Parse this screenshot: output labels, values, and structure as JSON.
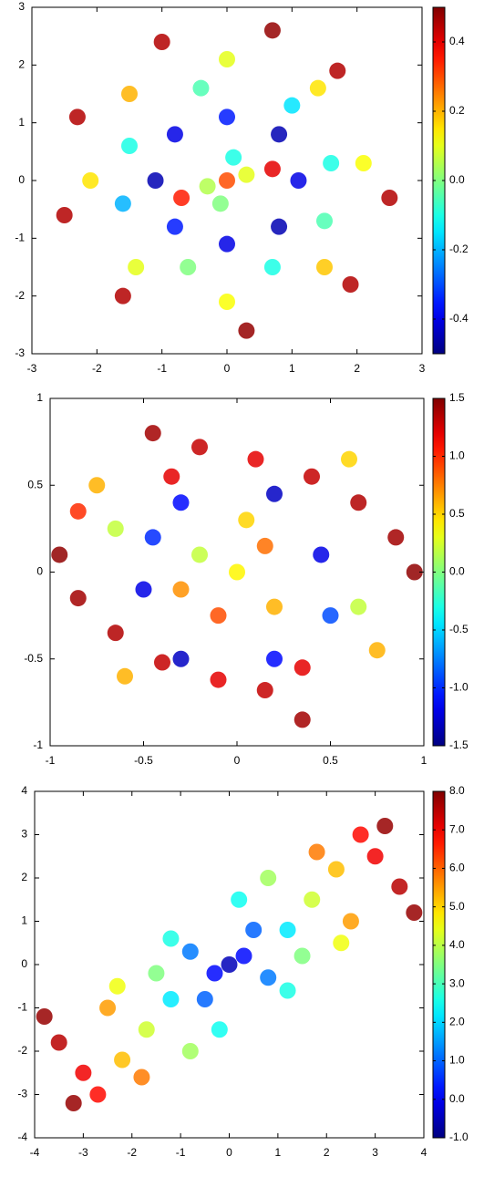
{
  "chart_data": [
    {
      "type": "scatter",
      "colormap": "jet",
      "xlim": [
        -3,
        3
      ],
      "ylim": [
        -3,
        3
      ],
      "clim": [
        -0.5,
        0.5
      ],
      "xticks": [
        -3,
        -2,
        -1,
        0,
        1,
        2,
        3
      ],
      "yticks": [
        -3,
        -2,
        -1,
        0,
        1,
        2,
        3
      ],
      "cticks": [
        -0.4,
        -0.2,
        {
          "value": 0,
          "label": "0.0"
        },
        0.2,
        0.4
      ],
      "x": [
        0,
        0.3,
        -0.3,
        0.7,
        -0.7,
        0.1,
        -0.1,
        1.1,
        0.8,
        0,
        -0.8,
        -1.1,
        -0.8,
        0,
        0.8,
        1.6,
        1,
        -0.4,
        -1.5,
        -1.6,
        -0.6,
        0.7,
        1.5,
        2.1,
        1.4,
        0,
        -1.5,
        -2.1,
        -1.4,
        0,
        1.5,
        2.5,
        1.7,
        0.7,
        -1.0,
        -2.3,
        -2.5,
        -1.6,
        0.3,
        1.9
      ],
      "y": [
        0,
        0.1,
        -0.1,
        0.2,
        -0.3,
        0.4,
        -0.4,
        0,
        0.8,
        1.1,
        0.8,
        0,
        -0.8,
        -1.1,
        -0.8,
        0.3,
        1.3,
        1.6,
        0.6,
        -0.4,
        -1.5,
        -1.5,
        -0.7,
        0.3,
        1.6,
        2.1,
        1.5,
        0,
        -1.5,
        -2.1,
        -1.5,
        -0.3,
        1.9,
        2.6,
        2.4,
        1.1,
        -0.6,
        -2.0,
        -2.6,
        -1.8
      ],
      "c": [
        0.3,
        0.1,
        0.05,
        0.4,
        0.35,
        -0.1,
        0.0,
        -0.4,
        -0.45,
        -0.35,
        -0.4,
        -0.45,
        -0.35,
        -0.4,
        -0.45,
        -0.1,
        -0.15,
        -0.05,
        -0.1,
        -0.2,
        0.0,
        -0.1,
        -0.05,
        0.12,
        0.15,
        0.1,
        0.2,
        0.15,
        0.1,
        0.12,
        0.18,
        0.45,
        0.45,
        0.48,
        0.45,
        0.45,
        0.45,
        0.45,
        0.48,
        0.45
      ]
    },
    {
      "type": "scatter",
      "colormap": "jet",
      "xlim": [
        -1,
        1
      ],
      "ylim": [
        -1,
        1
      ],
      "clim": [
        -1.5,
        1.5
      ],
      "xticks": [
        -1,
        -0.5,
        0,
        0.5,
        1
      ],
      "yticks": [
        -1,
        -0.5,
        0,
        0.5,
        1
      ],
      "cticks": [
        -1.5,
        {
          "value": -1,
          "label": "-1.0"
        },
        -0.5,
        {
          "value": 0,
          "label": "0.0"
        },
        0.5,
        {
          "value": 1,
          "label": "1.0"
        },
        1.5
      ],
      "x": [
        0,
        0.15,
        -0.2,
        0.2,
        -0.1,
        0.05,
        -0.3,
        0.45,
        0.2,
        -0.3,
        -0.5,
        -0.3,
        0.2,
        0.5,
        -0.45,
        -0.45,
        -0.2,
        0.1,
        0.4,
        0.65,
        0.85,
        0.95,
        -0.35,
        -0.95,
        -0.85,
        -0.65,
        -0.4,
        -0.1,
        0.15,
        0.35,
        0.35,
        -0.75,
        -0.65,
        -0.85,
        0.75,
        0.65,
        0.6,
        -0.6
      ],
      "y": [
        0,
        0.15,
        0.1,
        -0.2,
        -0.25,
        0.3,
        -0.1,
        0.1,
        0.45,
        0.4,
        -0.1,
        -0.5,
        -0.5,
        -0.25,
        0.2,
        0.8,
        0.72,
        0.65,
        0.55,
        0.4,
        0.2,
        0.0,
        0.55,
        0.1,
        -0.15,
        -0.35,
        -0.52,
        -0.62,
        -0.68,
        -0.85,
        -0.55,
        0.5,
        0.25,
        0.35,
        -0.45,
        -0.2,
        0.65,
        -0.6
      ],
      "c": [
        0.4,
        0.8,
        0.2,
        0.6,
        0.9,
        0.5,
        0.7,
        -1.2,
        -1.3,
        -1.1,
        -1.2,
        -1.3,
        -1.1,
        -0.9,
        -1.0,
        1.4,
        1.3,
        1.2,
        1.3,
        1.35,
        1.4,
        1.45,
        1.2,
        1.45,
        1.4,
        1.35,
        1.3,
        1.2,
        1.3,
        1.4,
        1.2,
        0.6,
        0.2,
        1.0,
        0.6,
        0.2,
        0.5,
        0.6
      ]
    },
    {
      "type": "scatter",
      "colormap": "jet",
      "xlim": [
        -4,
        4
      ],
      "ylim": [
        -4,
        4
      ],
      "clim": [
        -1,
        8
      ],
      "xticks": [
        -4,
        -3,
        -2,
        -1,
        0,
        1,
        2,
        3,
        4
      ],
      "yticks": [
        -4,
        -3,
        -2,
        -1,
        0,
        1,
        2,
        3,
        4
      ],
      "cticks": [
        {
          "value": -1,
          "label": "-1.0"
        },
        {
          "value": 0,
          "label": "0.0"
        },
        {
          "value": 1,
          "label": "1.0"
        },
        {
          "value": 2,
          "label": "2.0"
        },
        {
          "value": 3,
          "label": "3.0"
        },
        {
          "value": 4,
          "label": "4.0"
        },
        {
          "value": 5,
          "label": "5.0"
        },
        {
          "value": 6,
          "label": "6.0"
        },
        {
          "value": 7,
          "label": "7.0"
        },
        {
          "value": 8,
          "label": "8.0"
        }
      ],
      "x": [
        0,
        0.3,
        -0.3,
        0.5,
        -0.5,
        0.8,
        -0.8,
        0.2,
        -0.2,
        1.2,
        -1.2,
        1.2,
        -1.2,
        0.8,
        -0.8,
        1.7,
        -1.7,
        1.5,
        -1.5,
        2.2,
        -2.2,
        2.5,
        -2.5,
        1.8,
        -1.8,
        3.0,
        -3.0,
        3.5,
        -3.5,
        3.2,
        -3.2,
        3.8,
        -3.8,
        2.7,
        -2.7,
        -2.3,
        2.3
      ],
      "y": [
        0,
        0.2,
        -0.2,
        0.8,
        -0.8,
        -0.3,
        0.3,
        1.5,
        -1.5,
        0.8,
        -0.8,
        -0.6,
        0.6,
        2.0,
        -2.0,
        1.5,
        -1.5,
        0.2,
        -0.2,
        2.2,
        -2.2,
        1.0,
        -1.0,
        2.6,
        -2.6,
        2.5,
        -2.5,
        1.8,
        -1.8,
        3.2,
        -3.2,
        1.2,
        -1.2,
        3.0,
        -3.0,
        -0.5,
        0.5
      ],
      "c": [
        -0.5,
        0.2,
        0.2,
        1.0,
        1.0,
        1.2,
        1.2,
        2.5,
        2.5,
        2.2,
        2.2,
        2.6,
        2.6,
        3.8,
        3.8,
        4.2,
        4.2,
        3.5,
        3.5,
        5.2,
        5.2,
        5.5,
        5.5,
        5.8,
        5.8,
        7.0,
        7.0,
        7.5,
        7.5,
        7.8,
        7.8,
        7.8,
        7.8,
        6.8,
        6.8,
        4.5,
        4.5
      ]
    }
  ]
}
